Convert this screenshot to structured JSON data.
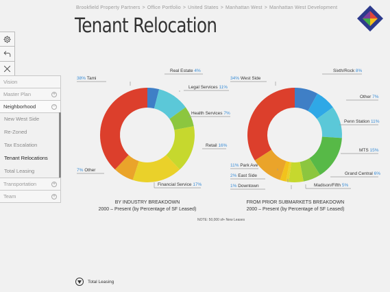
{
  "breadcrumb": [
    "Brookfield Property Partners",
    "Office Portfolio",
    "United States",
    "Manhattan West",
    "Manhattan West Development"
  ],
  "breadcrumb_sep": ">",
  "page_title": "Tenant Relocation",
  "logo_colors": [
    "#e0473a",
    "#2d3a8c",
    "#f2c21c",
    "#3fae49",
    "#7b3f9e"
  ],
  "toolbar": {
    "icons": [
      "gear-icon",
      "back-arrow-icon",
      "close-icon"
    ]
  },
  "sidebar": {
    "items": [
      {
        "label": "Vision",
        "control": ""
      },
      {
        "label": "Master Plan",
        "control": "+"
      },
      {
        "label": "Neighborhood",
        "control": "−"
      }
    ],
    "subitems": [
      {
        "label": "New West Side"
      },
      {
        "label": "Re-Zoned"
      },
      {
        "label": "Tax Escalation"
      },
      {
        "label": "Tenant Relocations"
      },
      {
        "label": "Total Leasing"
      }
    ],
    "after": [
      {
        "label": "Transportation",
        "control": "+"
      },
      {
        "label": "Team",
        "control": "+"
      }
    ]
  },
  "chart_data": [
    {
      "type": "pie",
      "subtype": "donut",
      "title": "BY INDUSTRY BREAKDOWN",
      "subtitle": "2000 – Present (by Percentage of SF Leased)",
      "slices": [
        {
          "label": "Real Estate",
          "value": 4,
          "value_label": "4%",
          "color": "#3f7fc6"
        },
        {
          "label": "Legal Services",
          "value": 11,
          "value_label": "11%",
          "color": "#5bc8d8"
        },
        {
          "label": "Health Services",
          "value": 7,
          "value_label": "7%",
          "color": "#8cc63f"
        },
        {
          "label": "Retail",
          "value": 16,
          "value_label": "16%",
          "color": "#c6d82e"
        },
        {
          "label": "Financial Service",
          "value": 17,
          "value_label": "17%",
          "color": "#ead12a"
        },
        {
          "label": "Other",
          "value": 7,
          "value_label": "7%",
          "color": "#eaa42a"
        },
        {
          "label": "Tami",
          "value": 38,
          "value_label": "38%",
          "color": "#dc3f2c"
        }
      ]
    },
    {
      "type": "pie",
      "subtype": "donut",
      "title": "FROM PRIOR SUBMARKETS BREAKDOWN",
      "subtitle": "2000 – Present (by Percentage of SF Leased)",
      "slices": [
        {
          "label": "Sixth/Rock",
          "value": 8,
          "value_label": "8%",
          "color": "#3f7fc6"
        },
        {
          "label": "Other",
          "value": 7,
          "value_label": "7%",
          "color": "#2fa8e6"
        },
        {
          "label": "Penn Station",
          "value": 11,
          "value_label": "11%",
          "color": "#5bc8d8"
        },
        {
          "label": "MTS",
          "value": 15,
          "value_label": "15%",
          "color": "#57b947"
        },
        {
          "label": "Grand Central",
          "value": 6,
          "value_label": "6%",
          "color": "#8cc63f"
        },
        {
          "label": "Madison/Fifth",
          "value": 5,
          "value_label": "5%",
          "color": "#c6d82e"
        },
        {
          "label": "Downtown",
          "value": 1,
          "value_label": "1%",
          "color": "#ead12a"
        },
        {
          "label": "East Side",
          "value": 2,
          "value_label": "2%",
          "color": "#f2c21c"
        },
        {
          "label": "Park Ave",
          "value": 11,
          "value_label": "11%",
          "color": "#eaa42a"
        },
        {
          "label": "West Side",
          "value": 34,
          "value_label": "34%",
          "color": "#dc3f2c"
        }
      ]
    }
  ],
  "note": "NOTE: 50,000 sf+ New Leases",
  "bottom": {
    "label": "Total Leasing",
    "icon": "chevron-down-circle-icon"
  }
}
